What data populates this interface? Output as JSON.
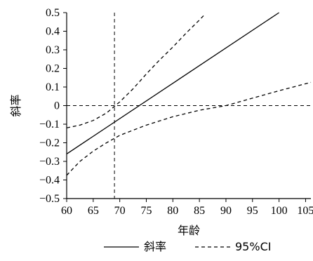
{
  "chart_data": {
    "type": "line",
    "xlabel": "年龄",
    "ylabel": "斜率",
    "xlim": [
      60,
      106
    ],
    "ylim": [
      -0.5,
      0.5
    ],
    "x_ticks": [
      "60",
      "65",
      "70",
      "75",
      "80",
      "85",
      "90",
      "95",
      "100",
      "105"
    ],
    "y_ticks": [
      "0.5",
      "0.4",
      "0.3",
      "0.2",
      "0.1",
      "0",
      "-0.1",
      "-0.2",
      "-0.3",
      "-0.4",
      "-0.5"
    ],
    "reference_lines": [
      {
        "axis": "x",
        "value": 69,
        "style": "dashed"
      },
      {
        "axis": "y",
        "value": 0,
        "style": "dashed"
      }
    ],
    "series": [
      {
        "name": "斜率",
        "style": "solid",
        "x": [
          60,
          100
        ],
        "y": [
          -0.26,
          0.5
        ]
      },
      {
        "name": "95%CI",
        "style": "dashed",
        "x": [
          60,
          62.5,
          65,
          67.5,
          70,
          72.5,
          75,
          77.5,
          80,
          82.5,
          85,
          86
        ],
        "y": [
          -0.12,
          -0.105,
          -0.08,
          -0.04,
          0.02,
          0.09,
          0.17,
          0.245,
          0.315,
          0.39,
          0.46,
          0.49
        ]
      },
      {
        "name": "95%CI",
        "style": "dashed",
        "x": [
          60,
          62.5,
          65,
          67.5,
          70,
          75,
          80,
          85,
          90,
          95,
          100,
          106
        ],
        "y": [
          -0.375,
          -0.3,
          -0.245,
          -0.2,
          -0.16,
          -0.105,
          -0.06,
          -0.025,
          0.0,
          0.04,
          0.08,
          0.125
        ]
      }
    ],
    "legend": {
      "position": "bottom",
      "items": [
        {
          "label": "斜率",
          "style": "solid"
        },
        {
          "label": "95%CI",
          "style": "dashed"
        }
      ]
    }
  }
}
